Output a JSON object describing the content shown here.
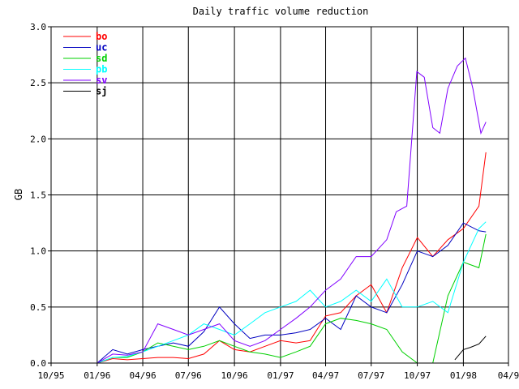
{
  "chart_data": {
    "type": "line",
    "title": "Daily traffic volume reduction",
    "xlabel": "",
    "ylabel": "GB",
    "xlim": [
      "1995-10-01",
      "1998-04-01"
    ],
    "ylim": [
      0,
      3.0
    ],
    "grid": true,
    "legend_placement": "top-left",
    "x_tick_labels": [
      "10/95",
      "01/96",
      "04/96",
      "07/96",
      "10/96",
      "01/97",
      "04/97",
      "07/97",
      "10/97",
      "01/98",
      "04/9"
    ],
    "y_tick_labels": [
      "0.0",
      "0.5",
      "1.0",
      "1.5",
      "2.0",
      "2.5",
      "3.0"
    ],
    "series": [
      {
        "name": "bo",
        "color": "#ff0000",
        "x": [
          "1996-01-01",
          "1996-02-01",
          "1996-03-01",
          "1996-04-01",
          "1996-05-01",
          "1996-06-01",
          "1996-07-01",
          "1996-08-01",
          "1996-09-01",
          "1996-10-01",
          "1996-11-01",
          "1996-12-01",
          "1997-01-01",
          "1997-02-01",
          "1997-03-01",
          "1997-04-01",
          "1997-05-01",
          "1997-06-01",
          "1997-07-01",
          "1997-08-01",
          "1997-09-01",
          "1997-10-01",
          "1997-11-01",
          "1997-12-01",
          "1998-01-01",
          "1998-02-01",
          "1998-02-15"
        ],
        "values": [
          0.0,
          0.04,
          0.03,
          0.04,
          0.05,
          0.05,
          0.04,
          0.08,
          0.2,
          0.12,
          0.1,
          0.15,
          0.2,
          0.18,
          0.2,
          0.42,
          0.45,
          0.6,
          0.7,
          0.45,
          0.85,
          1.12,
          0.95,
          1.1,
          1.2,
          1.4,
          1.88
        ]
      },
      {
        "name": "uc",
        "color": "#0000c0",
        "x": [
          "1996-01-01",
          "1996-02-01",
          "1996-03-01",
          "1996-04-01",
          "1996-05-01",
          "1996-06-01",
          "1996-07-01",
          "1996-08-01",
          "1996-09-01",
          "1996-10-01",
          "1996-11-01",
          "1996-12-01",
          "1997-01-01",
          "1997-02-01",
          "1997-03-01",
          "1997-04-01",
          "1997-05-01",
          "1997-06-01",
          "1997-07-01",
          "1997-08-01",
          "1997-09-01",
          "1997-10-01",
          "1997-11-01",
          "1997-12-01",
          "1998-01-01",
          "1998-02-01",
          "1998-02-15"
        ],
        "values": [
          0.0,
          0.12,
          0.08,
          0.12,
          0.15,
          0.18,
          0.15,
          0.28,
          0.5,
          0.35,
          0.22,
          0.25,
          0.25,
          0.27,
          0.3,
          0.4,
          0.3,
          0.6,
          0.5,
          0.45,
          0.7,
          1.0,
          0.95,
          1.05,
          1.25,
          1.18,
          1.17
        ]
      },
      {
        "name": "sd",
        "color": "#00d000",
        "x": [
          "1996-01-01",
          "1996-02-01",
          "1996-03-01",
          "1996-04-01",
          "1996-05-01",
          "1996-06-01",
          "1996-07-01",
          "1996-08-01",
          "1996-09-01",
          "1996-10-01",
          "1996-11-01",
          "1996-12-01",
          "1997-01-01",
          "1997-02-01",
          "1997-03-01",
          "1997-04-01",
          "1997-05-01",
          "1997-06-01",
          "1997-07-01",
          "1997-08-01",
          "1997-09-01",
          "1997-10-01",
          "1997-11-01",
          "1997-12-01",
          "1998-01-01",
          "1998-02-01",
          "1998-02-15"
        ],
        "values": [
          0.0,
          0.05,
          0.05,
          0.1,
          0.18,
          0.15,
          0.12,
          0.15,
          0.2,
          0.15,
          0.1,
          0.08,
          0.05,
          0.1,
          0.15,
          0.35,
          0.4,
          0.38,
          0.35,
          0.3,
          0.1,
          0.0,
          0.0,
          0.6,
          0.9,
          0.85,
          1.15
        ]
      },
      {
        "name": "pb",
        "color": "#00ffff",
        "x": [
          "1996-01-01",
          "1996-02-01",
          "1996-03-01",
          "1996-04-01",
          "1996-05-01",
          "1996-06-01",
          "1996-07-01",
          "1996-08-01",
          "1996-09-01",
          "1996-10-01",
          "1996-11-01",
          "1996-12-01",
          "1997-01-01",
          "1997-02-01",
          "1997-03-01",
          "1997-04-01",
          "1997-05-01",
          "1997-06-01",
          "1997-07-01",
          "1997-08-01",
          "1997-09-01",
          "1997-10-01",
          "1997-11-01",
          "1997-12-01",
          "1998-01-01",
          "1998-02-01",
          "1998-02-15"
        ],
        "values": [
          0.0,
          0.05,
          0.06,
          0.1,
          0.15,
          0.2,
          0.25,
          0.35,
          0.3,
          0.25,
          0.35,
          0.45,
          0.5,
          0.55,
          0.65,
          0.5,
          0.55,
          0.65,
          0.55,
          0.75,
          0.5,
          0.5,
          0.55,
          0.45,
          0.9,
          1.2,
          1.26
        ]
      },
      {
        "name": "sv",
        "color": "#8000ff",
        "x": [
          "1996-01-01",
          "1996-02-01",
          "1996-03-01",
          "1996-04-01",
          "1996-05-01",
          "1996-06-01",
          "1996-07-01",
          "1996-08-01",
          "1996-09-01",
          "1996-10-01",
          "1996-11-01",
          "1996-12-01",
          "1997-01-01",
          "1997-02-01",
          "1997-03-01",
          "1997-04-01",
          "1997-05-01",
          "1997-06-01",
          "1997-07-01",
          "1997-08-01",
          "1997-08-20",
          "1997-09-10",
          "1997-09-30",
          "1997-10-15",
          "1997-11-01",
          "1997-11-15",
          "1997-12-01",
          "1997-12-20",
          "1998-01-05",
          "1998-01-20",
          "1998-02-05",
          "1998-02-15"
        ],
        "values": [
          0.0,
          0.08,
          0.07,
          0.1,
          0.35,
          0.3,
          0.25,
          0.3,
          0.35,
          0.2,
          0.15,
          0.2,
          0.3,
          0.4,
          0.5,
          0.65,
          0.75,
          0.95,
          0.95,
          1.1,
          1.35,
          1.4,
          2.6,
          2.55,
          2.1,
          2.05,
          2.45,
          2.65,
          2.72,
          2.45,
          2.05,
          2.15
        ]
      },
      {
        "name": "sj",
        "color": "#000000",
        "x": [
          "1997-12-15",
          "1998-01-01",
          "1998-01-15",
          "1998-02-01",
          "1998-02-15"
        ],
        "values": [
          0.03,
          0.12,
          0.14,
          0.17,
          0.24
        ]
      }
    ]
  }
}
